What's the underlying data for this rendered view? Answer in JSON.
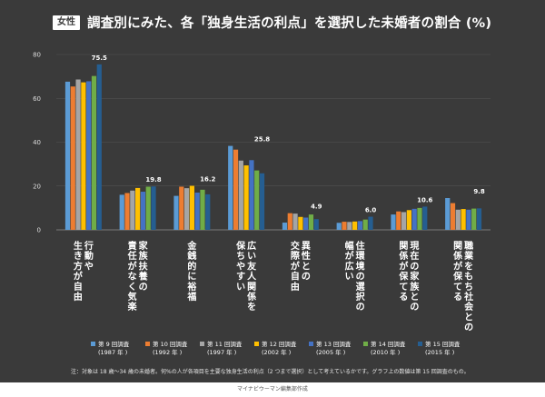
{
  "header": {
    "badge": "女性",
    "title": "調査別にみた、各「独身生活の利点」を選択した未婚者の割合 (%)"
  },
  "chart_data": {
    "type": "bar",
    "ylim": [
      0,
      80
    ],
    "yticks": [
      0,
      20,
      40,
      60,
      80
    ],
    "grid": true,
    "legend_position": "bottom",
    "categories": [
      "行動や生き方が自由",
      "家族扶養の責任がなく気楽",
      "金銭的に裕福",
      "広い友人関係を保ちやすい",
      "異性との交際が自由",
      "住環境の選択の幅が広い",
      "現在の家族との関係が保てる",
      "職業をもち社会との関係が保てる"
    ],
    "category_label_columns": [
      [
        "行動や",
        "生き方が自由"
      ],
      [
        "家族扶養の",
        "責任がなく気楽"
      ],
      [
        "金銭的に裕福"
      ],
      [
        "広い友人関係を",
        "保ちやすい"
      ],
      [
        "異性との",
        "交際が自由"
      ],
      [
        "住環境の選択の",
        "幅が広い"
      ],
      [
        "現在の家族との",
        "関係が保てる"
      ],
      [
        "職業をもち社会との",
        "関係が保てる"
      ]
    ],
    "series": [
      {
        "name": "第 9 回調査",
        "year": "(1987 年 )",
        "color": "#5b9bd5",
        "values": [
          67.6,
          16.0,
          15.5,
          38.3,
          3.3,
          3.2,
          7.0,
          14.5
        ]
      },
      {
        "name": "第 10 回調査",
        "year": "(1992 年 )",
        "color": "#ed7d31",
        "values": [
          65.4,
          16.8,
          19.7,
          36.6,
          7.6,
          3.7,
          8.4,
          12.2
        ]
      },
      {
        "name": "第 11 回調査",
        "year": "(1997 年 )",
        "color": "#a5a5a5",
        "values": [
          68.6,
          17.9,
          19.0,
          31.6,
          7.4,
          3.6,
          8.1,
          9.2
        ]
      },
      {
        "name": "第 12 回調査",
        "year": "(2002 年 )",
        "color": "#ffc000",
        "values": [
          67.3,
          19.1,
          20.1,
          29.4,
          5.9,
          3.8,
          9.0,
          9.5
        ]
      },
      {
        "name": "第 13 回調査",
        "year": "(2005 年 )",
        "color": "#4472c4",
        "values": [
          67.8,
          17.4,
          17.0,
          31.8,
          5.6,
          4.0,
          9.6,
          9.2
        ]
      },
      {
        "name": "第 14 回調査",
        "year": "(2010 年 )",
        "color": "#70ad47",
        "values": [
          70.2,
          19.7,
          18.3,
          27.1,
          7.0,
          4.7,
          10.0,
          9.7
        ]
      },
      {
        "name": "第 15 回調査",
        "year": "(2015 年 )",
        "color": "#255e91",
        "values": [
          75.5,
          19.8,
          16.2,
          25.8,
          4.9,
          6.0,
          10.6,
          9.8
        ]
      }
    ],
    "data_labels": [
      "75.5",
      "19.8",
      "16.2",
      "25.8",
      "4.9",
      "6.0",
      "10.6",
      "9.8"
    ]
  },
  "note": "注：対象は 18 歳～34 歳の未婚者。何%の人が各項目を主要な独身生活の利点（2 つまで選択）として考えているかです。グラフ上の数値は第 15 回調査のもの。",
  "footer": "マイナビウーマン編集部作成"
}
